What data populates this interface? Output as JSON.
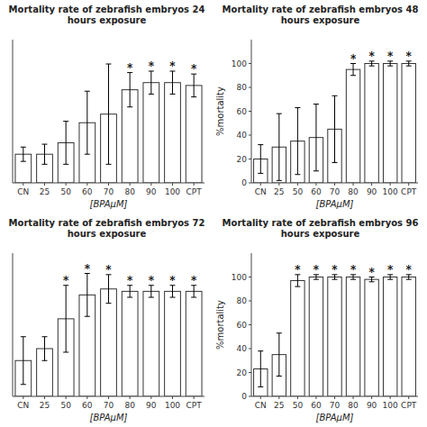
{
  "chart_data": [
    {
      "type": "bar",
      "title": "Mortality rate of zebrafish embryos 24 hours exposure",
      "xlabel": "[BPAμM]",
      "categories": [
        "CN",
        "25",
        "50",
        "60",
        "70",
        "80",
        "90",
        "100",
        "CPT"
      ],
      "values": [
        20,
        20,
        28,
        42,
        48,
        65,
        70,
        70,
        68
      ],
      "errors": [
        5,
        7,
        15,
        22,
        35,
        12,
        8,
        8,
        8
      ],
      "significant": [
        false,
        false,
        false,
        false,
        false,
        true,
        true,
        true,
        true
      ],
      "significance_mark": "*",
      "ylim": [
        0,
        100
      ],
      "tick_labels": "x",
      "color": "#ffffff"
    },
    {
      "type": "bar",
      "title": "Mortality rate of zebrafish embryos 48 hours exposure",
      "xlabel": "[BPAμM]",
      "ylabel": "%mortality",
      "categories": [
        "CN",
        "25",
        "50",
        "60",
        "70",
        "80",
        "90",
        "100",
        "CPT"
      ],
      "values": [
        20,
        30,
        35,
        38,
        45,
        95,
        100,
        100,
        100
      ],
      "errors": [
        12,
        28,
        28,
        28,
        28,
        5,
        2,
        2,
        2
      ],
      "significant": [
        false,
        false,
        false,
        false,
        false,
        true,
        true,
        true,
        true
      ],
      "significance_mark": "*",
      "ylim": [
        0,
        120
      ],
      "yticks": [
        0,
        20,
        40,
        60,
        80,
        100
      ],
      "color": "#ffffff"
    },
    {
      "type": "bar",
      "title": "Mortality rate of zebrafish embryos 72 hours exposure",
      "xlabel": "[BPAμM]",
      "categories": [
        "CN",
        "25",
        "50",
        "60",
        "70",
        "80",
        "90",
        "100",
        "CPT"
      ],
      "values": [
        30,
        40,
        65,
        85,
        90,
        88,
        88,
        88,
        88
      ],
      "errors": [
        20,
        10,
        28,
        18,
        12,
        5,
        5,
        5,
        5
      ],
      "significant": [
        false,
        false,
        true,
        true,
        true,
        true,
        true,
        true,
        true
      ],
      "significance_mark": "*",
      "ylim": [
        0,
        120
      ],
      "tick_labels": "x",
      "color": "#ffffff"
    },
    {
      "type": "bar",
      "title": "Mortality rate of zebrafish embryos 96 hours exposure",
      "xlabel": "[BPAμM]",
      "ylabel": "%mortality",
      "categories": [
        "CN",
        "25",
        "50",
        "60",
        "70",
        "80",
        "90",
        "100",
        "CPT"
      ],
      "values": [
        23,
        35,
        97,
        100,
        100,
        100,
        98,
        100,
        100
      ],
      "errors": [
        15,
        18,
        5,
        2,
        2,
        2,
        2,
        2,
        2
      ],
      "significant": [
        false,
        false,
        true,
        true,
        true,
        true,
        true,
        true,
        true
      ],
      "significance_mark": "*",
      "ylim": [
        0,
        120
      ],
      "yticks": [
        0,
        20,
        40,
        60,
        80,
        100
      ],
      "color": "#ffffff"
    }
  ]
}
